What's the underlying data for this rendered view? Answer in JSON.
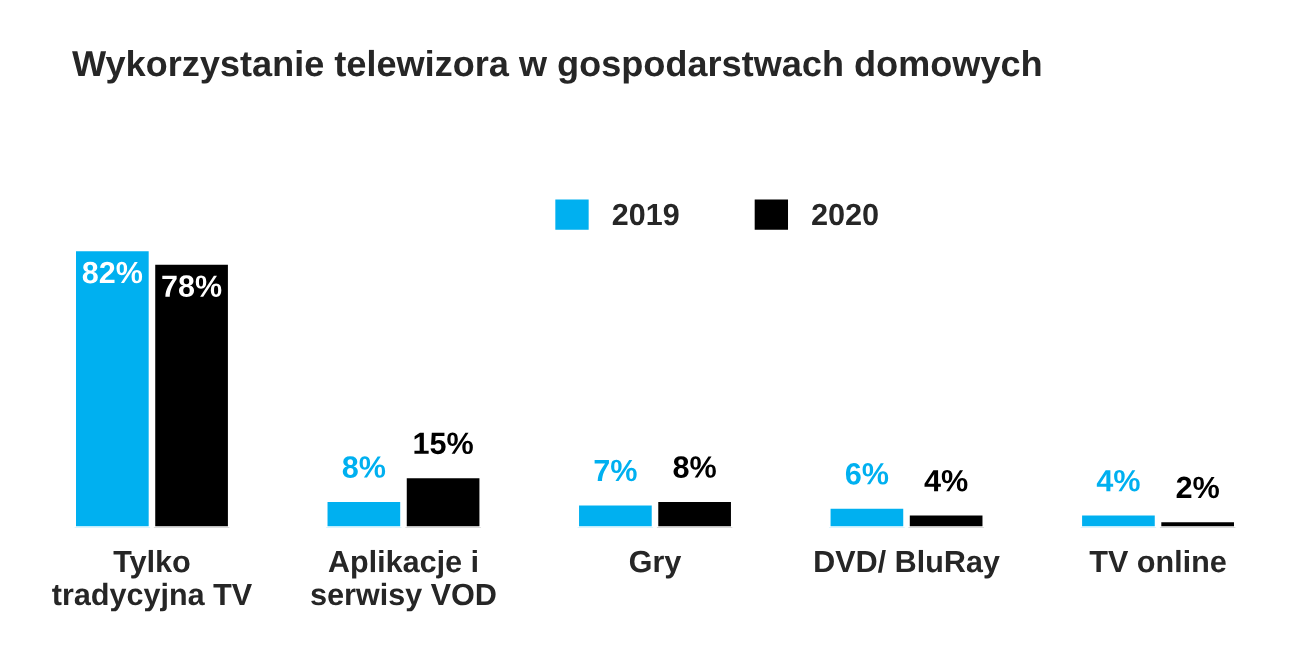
{
  "chart_data": {
    "type": "bar",
    "title": "Wykorzystanie telewizora w gospodarstwach domowych",
    "categories": [
      "Tylko\ntradycyjna TV",
      "Aplikacje i\nserwisy VOD",
      "Gry",
      "DVD/ BluRay",
      "TV online"
    ],
    "series": [
      {
        "name": "2019",
        "color": "#00b0f0",
        "values": [
          82,
          8,
          7,
          6,
          4
        ],
        "value_labels": [
          "82%",
          "8%",
          "7%",
          "6%",
          "4%"
        ]
      },
      {
        "name": "2020",
        "color": "#000000",
        "values": [
          78,
          15,
          8,
          4,
          2
        ],
        "value_labels": [
          "78%",
          "15%",
          "8%",
          "4%",
          "2%"
        ]
      }
    ],
    "legend": "top",
    "grid": false
  }
}
